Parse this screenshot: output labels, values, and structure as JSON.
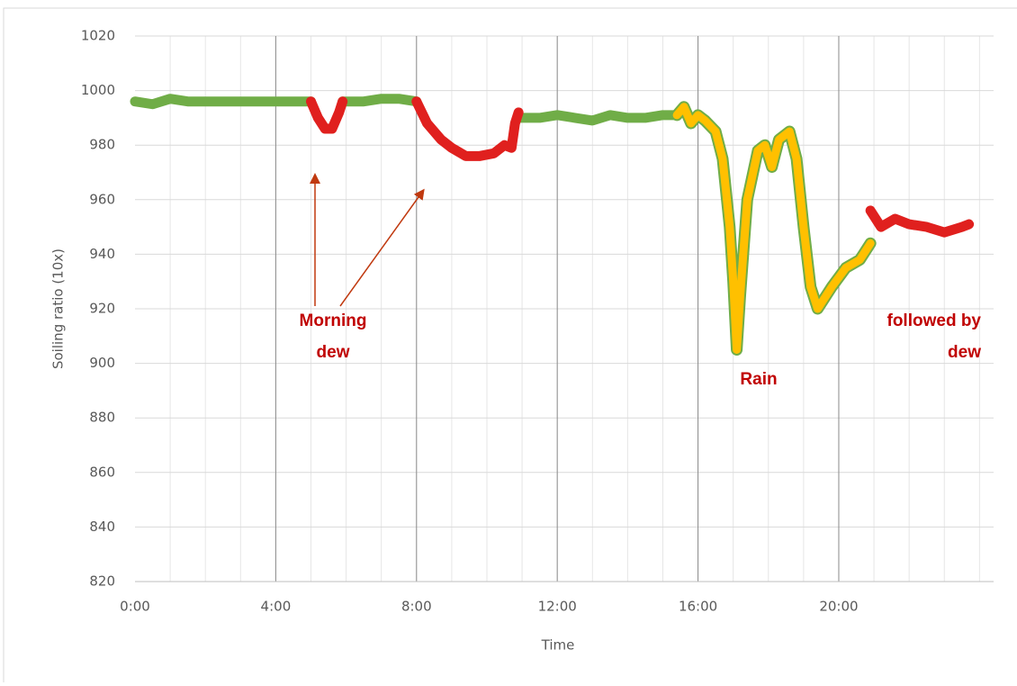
{
  "chart_data": {
    "type": "line",
    "x_label": "Time",
    "y_label": "Soiling ratio (10x)",
    "xlim": [
      0,
      24.4
    ],
    "ylim": [
      820,
      1020
    ],
    "xticks": [
      {
        "value": 0,
        "label": "0:00"
      },
      {
        "value": 4,
        "label": "4:00"
      },
      {
        "value": 8,
        "label": "8:00"
      },
      {
        "value": 12,
        "label": "12:00"
      },
      {
        "value": 16,
        "label": "16:00"
      },
      {
        "value": 20,
        "label": "20:00"
      }
    ],
    "x_minor_step": 1,
    "yticks": [
      820,
      840,
      860,
      880,
      900,
      920,
      940,
      960,
      980,
      1000,
      1020
    ],
    "grid": true,
    "series": [
      {
        "color": "#70ad47",
        "x": [
          0,
          0.5,
          1,
          1.5,
          2,
          3,
          4,
          5,
          null,
          5.9,
          6.5,
          7,
          7.5,
          8,
          null,
          10.9,
          11.5,
          12,
          12.5,
          13,
          13.5,
          14,
          14.5,
          15,
          15.4
        ],
        "values": [
          996,
          995,
          997,
          996,
          996,
          996,
          996,
          996,
          null,
          996,
          996,
          997,
          997,
          996,
          null,
          990,
          990,
          991,
          990,
          989,
          991,
          990,
          990,
          991,
          991
        ]
      },
      {
        "color": "#e0201e",
        "x": [
          5.0,
          5.2,
          5.4,
          5.6,
          5.8,
          5.9,
          null,
          8.0,
          8.3,
          8.7,
          9,
          9.4,
          9.8,
          10.2,
          10.5,
          10.7,
          10.8,
          10.9,
          null,
          20.9,
          21.2,
          21.6,
          22,
          22.5,
          23,
          23.5,
          23.7
        ],
        "values": [
          996,
          990,
          986,
          986,
          992,
          996,
          null,
          996,
          988,
          982,
          979,
          976,
          976,
          977,
          980,
          979,
          988,
          992,
          null,
          956,
          950,
          953,
          951,
          950,
          948,
          950,
          951
        ]
      },
      {
        "color": "#ffc000",
        "outline": "#70ad47",
        "x": [
          15.4,
          15.6,
          15.8,
          16,
          16.2,
          16.5,
          16.7,
          16.9,
          17.0,
          17.1,
          17.2,
          17.4,
          17.7,
          17.9,
          18.1,
          18.3,
          18.6,
          18.8,
          19,
          19.2,
          19.4,
          19.8,
          20.2,
          20.6,
          20.9
        ],
        "values": [
          991,
          994,
          988,
          991,
          989,
          985,
          975,
          950,
          930,
          905,
          925,
          960,
          978,
          980,
          972,
          982,
          985,
          975,
          950,
          928,
          920,
          928,
          935,
          938,
          944
        ]
      }
    ],
    "annotations": [
      {
        "lines": [
          "Morning",
          "dew"
        ],
        "color": "#c00000"
      },
      {
        "lines": [
          "Rain"
        ],
        "color": "#c00000"
      },
      {
        "lines": [
          "followed by",
          "dew"
        ],
        "color": "#c00000"
      }
    ]
  }
}
